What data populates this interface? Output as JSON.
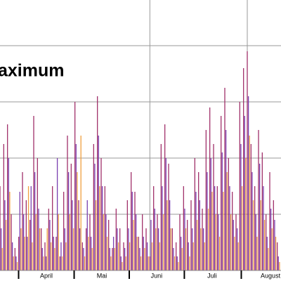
{
  "chart_data": {
    "type": "bar",
    "title": "aximum",
    "x": [
      0,
      2,
      4,
      6,
      8,
      10,
      12,
      14,
      16,
      18,
      20,
      22,
      24,
      26,
      28,
      30,
      32,
      34,
      36,
      38,
      40,
      42,
      44,
      46,
      48,
      50,
      52,
      54,
      56,
      58,
      60,
      62,
      64,
      66,
      68,
      70,
      72,
      74,
      76,
      78,
      80,
      82,
      84,
      86,
      88,
      90,
      92,
      94,
      96,
      98,
      100,
      102,
      104,
      106,
      108,
      110,
      112,
      114,
      116,
      118,
      120,
      122,
      124,
      126,
      128,
      130,
      132,
      134,
      136,
      138,
      140,
      142,
      144,
      146,
      148
    ],
    "series": [
      {
        "color": "#a0306a",
        "values": [
          30,
          45,
          52,
          20,
          8,
          12,
          35,
          25,
          18,
          55,
          40,
          15,
          10,
          22,
          30,
          12,
          5,
          28,
          48,
          38,
          60,
          25,
          10,
          15,
          20,
          45,
          62,
          40,
          30,
          18,
          8,
          22,
          15,
          10,
          25,
          35,
          28,
          12,
          20,
          15,
          5,
          30,
          20,
          45,
          52,
          38,
          15,
          10,
          20,
          30,
          18,
          25,
          40,
          35,
          22,
          50,
          58,
          45,
          30,
          55,
          65,
          40,
          28,
          20,
          60,
          72,
          78,
          45,
          30,
          50,
          42,
          20,
          35,
          25,
          10
        ]
      },
      {
        "color": "#7a3fb0",
        "values": [
          15,
          25,
          40,
          10,
          5,
          28,
          20,
          12,
          30,
          35,
          22,
          8,
          5,
          18,
          12,
          40,
          10,
          15,
          35,
          25,
          45,
          15,
          8,
          25,
          12,
          38,
          48,
          30,
          20,
          8,
          12,
          15,
          5,
          8,
          15,
          28,
          20,
          8,
          12,
          10,
          18,
          22,
          15,
          30,
          40,
          25,
          8,
          5,
          12,
          22,
          10,
          15,
          28,
          25,
          15,
          35,
          40,
          30,
          20,
          42,
          50,
          30,
          18,
          15,
          45,
          55,
          62,
          35,
          20,
          38,
          30,
          12,
          22,
          18,
          5
        ]
      },
      {
        "color": "#f0a040",
        "values": [
          8,
          18,
          28,
          5,
          3,
          15,
          12,
          30,
          10,
          20,
          15,
          5,
          15,
          10,
          8,
          20,
          5,
          10,
          20,
          15,
          35,
          48,
          5,
          12,
          8,
          25,
          30,
          20,
          12,
          5,
          8,
          10,
          3,
          5,
          10,
          18,
          12,
          5,
          8,
          5,
          10,
          15,
          10,
          20,
          25,
          15,
          5,
          3,
          8,
          15,
          5,
          10,
          18,
          15,
          10,
          22,
          28,
          20,
          12,
          28,
          35,
          20,
          12,
          10,
          30,
          40,
          48,
          25,
          12,
          25,
          18,
          8,
          15,
          12,
          3
        ]
      }
    ],
    "xlim": [
      0,
      150
    ],
    "xticks": [
      {
        "value": 24.75,
        "label": "April"
      },
      {
        "value": 54.4,
        "label": "Mai"
      },
      {
        "value": 83.6,
        "label": "Juni"
      },
      {
        "value": 113.2,
        "label": "Juli"
      },
      {
        "value": 144.4,
        "label": "August"
      }
    ],
    "ylim": [
      0,
      100
    ],
    "y_grid": [
      20,
      40,
      60,
      80
    ],
    "x_grid": [
      80,
      132
    ]
  }
}
